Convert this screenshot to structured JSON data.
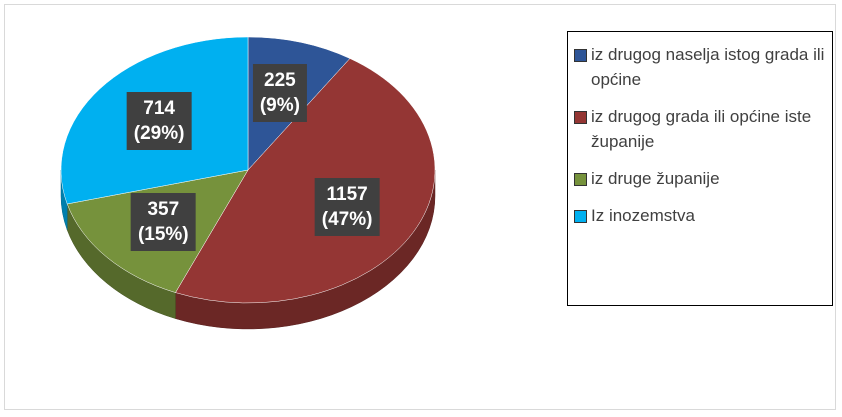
{
  "chart_data": {
    "type": "pie",
    "categories": [
      "iz drugog naselja istog grada ili općine",
      "iz drugog grada ili općine iste županije",
      "iz druge županije",
      "Iz inozemstva"
    ],
    "values": [
      225,
      1157,
      357,
      714
    ],
    "value_labels": [
      "225\n(9%)",
      "1157\n(47%)",
      "357\n(15%)",
      "714\n(29%)"
    ],
    "colors": [
      "#2e5597",
      "#943634",
      "#76923c",
      "#00b0f0"
    ],
    "legend": "right"
  }
}
